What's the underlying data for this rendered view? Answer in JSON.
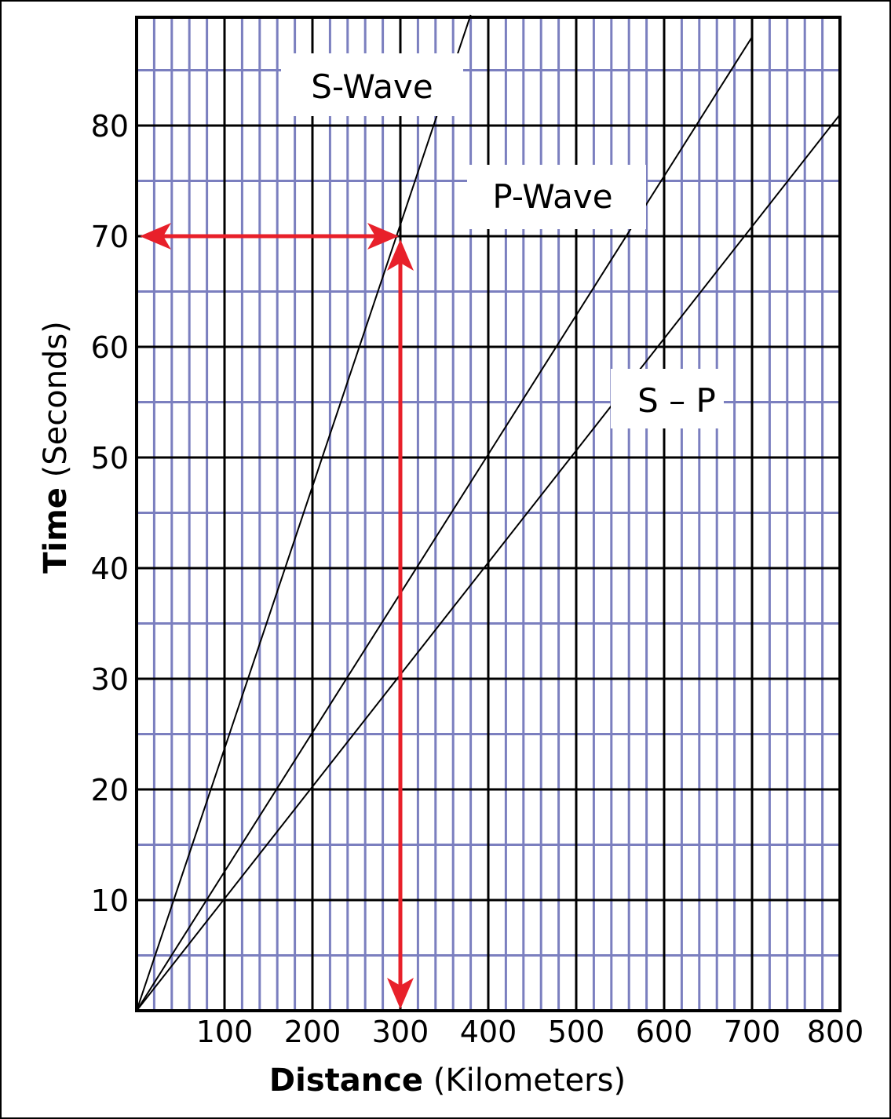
{
  "chart_data": {
    "type": "line",
    "xlabel_bold": "Distance",
    "xlabel_rest": "(Kilometers)",
    "ylabel_bold": "Time",
    "ylabel_rest": "(Seconds)",
    "xlim": [
      0,
      800
    ],
    "ylim": [
      0,
      90
    ],
    "x_ticks": [
      100,
      200,
      300,
      400,
      500,
      600,
      700,
      800
    ],
    "y_ticks": [
      10,
      20,
      30,
      40,
      50,
      60,
      70,
      80
    ],
    "grid": {
      "major_x_step": 100,
      "minor_x_step": 20,
      "major_y_step": 10,
      "minor_y_step": 5,
      "major_color": "#000000",
      "minor_color": "#7b7fbf"
    },
    "series": [
      {
        "name": "S-Wave",
        "x": [
          0,
          380
        ],
        "y": [
          0,
          90
        ]
      },
      {
        "name": "P-Wave",
        "x": [
          0,
          700
        ],
        "y": [
          0,
          88
        ]
      },
      {
        "name": "S – P",
        "x": [
          0,
          800
        ],
        "y": [
          0,
          81
        ]
      }
    ],
    "annotations": {
      "color": "#e8202a",
      "horizontal_arrow": {
        "from_x": 0,
        "to_x": 300,
        "y": 70
      },
      "vertical_arrow": {
        "x": 300,
        "from_y": 70,
        "to_y": 0
      }
    }
  }
}
